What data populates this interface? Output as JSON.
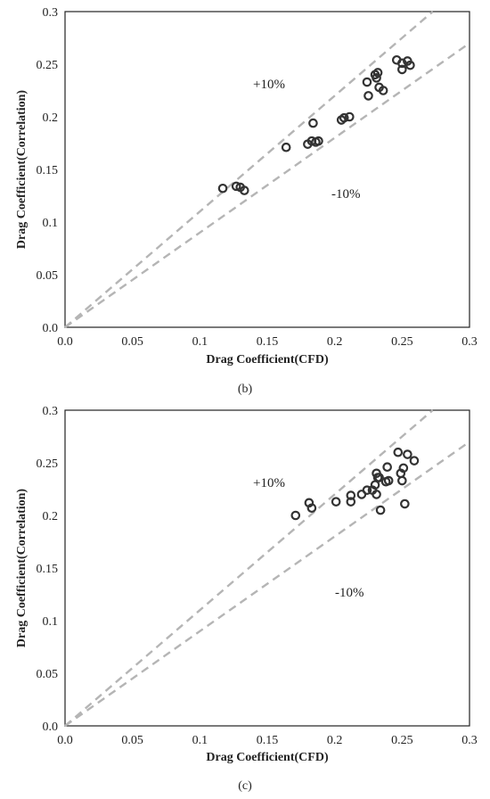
{
  "chart_data": [
    {
      "type": "scatter",
      "panel_label": "(b)",
      "xlabel": "Drag Coefficient(CFD)",
      "ylabel": "Drag Coefficient(Correlation)",
      "xlim": [
        0,
        0.3
      ],
      "ylim": [
        0,
        0.3
      ],
      "xticks": [
        "0.0",
        "0.05",
        "0.1",
        "0.15",
        "0.2",
        "0.25",
        "0.3"
      ],
      "yticks": [
        "0.0",
        "0.05",
        "0.1",
        "0.15",
        "0.2",
        "0.25",
        "0.3"
      ],
      "grid": false,
      "reference_lines": [
        {
          "label": "+10%",
          "slope": 1.1
        },
        {
          "label": "-10%",
          "slope": 0.9
        }
      ],
      "annotations": [
        "+10%",
        "-10%"
      ],
      "x": [
        0.117,
        0.127,
        0.13,
        0.133,
        0.164,
        0.18,
        0.183,
        0.184,
        0.186,
        0.188,
        0.205,
        0.207,
        0.211,
        0.224,
        0.225,
        0.23,
        0.231,
        0.232,
        0.233,
        0.236,
        0.246,
        0.25,
        0.25,
        0.254,
        0.256
      ],
      "y": [
        0.132,
        0.134,
        0.133,
        0.13,
        0.171,
        0.174,
        0.177,
        0.194,
        0.176,
        0.177,
        0.197,
        0.199,
        0.2,
        0.233,
        0.22,
        0.24,
        0.237,
        0.242,
        0.228,
        0.225,
        0.254,
        0.251,
        0.245,
        0.253,
        0.249
      ]
    },
    {
      "type": "scatter",
      "panel_label": "(c)",
      "xlabel": "Drag Coefficient(CFD)",
      "ylabel": "Drag Coefficient(Correlation)",
      "xlim": [
        0,
        0.3
      ],
      "ylim": [
        0,
        0.3
      ],
      "xticks": [
        "0.0",
        "0.05",
        "0.1",
        "0.15",
        "0.2",
        "0.25",
        "0.3"
      ],
      "yticks": [
        "0.0",
        "0.05",
        "0.1",
        "0.15",
        "0.2",
        "0.25",
        "0.3"
      ],
      "grid": false,
      "reference_lines": [
        {
          "label": "+10%",
          "slope": 1.1
        },
        {
          "label": "-10%",
          "slope": 0.9
        }
      ],
      "annotations": [
        "+10%",
        "-10%"
      ],
      "x": [
        0.171,
        0.181,
        0.183,
        0.201,
        0.212,
        0.212,
        0.22,
        0.224,
        0.228,
        0.23,
        0.231,
        0.231,
        0.232,
        0.233,
        0.234,
        0.238,
        0.239,
        0.24,
        0.247,
        0.249,
        0.25,
        0.251,
        0.252,
        0.254,
        0.259
      ],
      "y": [
        0.2,
        0.212,
        0.207,
        0.213,
        0.219,
        0.213,
        0.22,
        0.224,
        0.224,
        0.229,
        0.24,
        0.22,
        0.236,
        0.236,
        0.205,
        0.232,
        0.246,
        0.233,
        0.26,
        0.24,
        0.233,
        0.245,
        0.211,
        0.258,
        0.252
      ]
    }
  ]
}
